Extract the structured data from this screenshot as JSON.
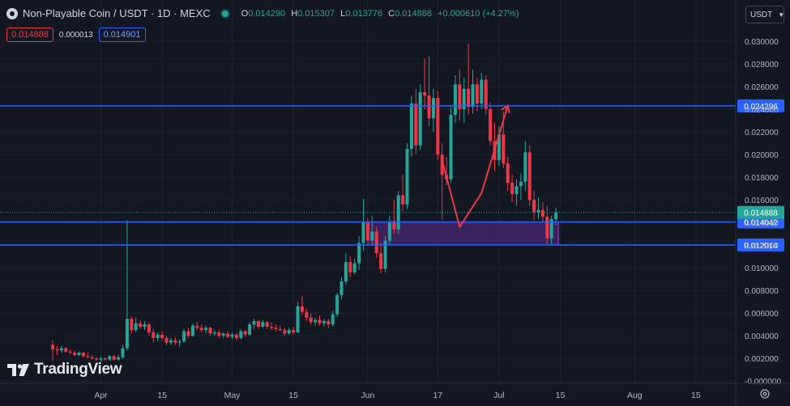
{
  "header": {
    "title": "Non-Playable Coin / USDT · 1D · MEXC",
    "ohlc": [
      {
        "k": "O",
        "v": "0.014290"
      },
      {
        "k": "H",
        "v": "0.015307"
      },
      {
        "k": "L",
        "v": "0.013776"
      },
      {
        "k": "C",
        "v": "0.014888"
      }
    ],
    "change": "+0.000610 (+4.27%)",
    "bid": "0.014888",
    "spread": "0.000013",
    "ask": "0.014901",
    "unit": "USDT",
    "logo": "TradingView",
    "icons": [
      "symbol-logo-icon",
      "live-dot-icon",
      "chevron-down-icon",
      "tradingview-logo-icon",
      "gear-icon"
    ]
  },
  "colors": {
    "background": "#131722",
    "up": "#26a69a",
    "down": "#f23645",
    "level_line": "#2962ff",
    "zone_fill": "#5b2d8c",
    "zone_border": "#9c27b0",
    "drawing": "#f23645"
  },
  "chart_data": {
    "type": "candlestick",
    "y_range": [
      -0.0002,
      0.0305
    ],
    "x_range": [
      "2024-03-20",
      "2024-08-31"
    ],
    "y_ticks": [
      "0.030000",
      "0.028000",
      "0.026000",
      "0.024000",
      "0.022000",
      "0.020000",
      "0.018000",
      "0.016000",
      "0.014000",
      "0.012000",
      "0.010000",
      "0.008000",
      "0.006000",
      "0.004000",
      "0.002000",
      "-0.000000"
    ],
    "x_ticks": [
      {
        "label": "Apr",
        "date": "2024-04-01"
      },
      {
        "label": "15",
        "date": "2024-04-15"
      },
      {
        "label": "May",
        "date": "2024-05-01"
      },
      {
        "label": "15",
        "date": "2024-05-15"
      },
      {
        "label": "Jun",
        "date": "2024-06-01"
      },
      {
        "label": "17",
        "date": "2024-06-17"
      },
      {
        "label": "Jul",
        "date": "2024-07-01"
      },
      {
        "label": "15",
        "date": "2024-07-15"
      },
      {
        "label": "Aug",
        "date": "2024-08-01"
      },
      {
        "label": "15",
        "date": "2024-08-15"
      }
    ],
    "horizontal_levels": [
      {
        "value": 0.024296,
        "label": "0.024296"
      },
      {
        "value": 0.014042,
        "label": "0.014042"
      },
      {
        "value": 0.012014,
        "label": "0.012014"
      }
    ],
    "current_price": {
      "value": 0.014888,
      "label": "0.014888"
    },
    "zone": {
      "from": "2024-06-01",
      "to": "2024-07-14",
      "low": 0.012014,
      "high": 0.014042
    },
    "drawn_path": [
      {
        "date": "2024-06-18",
        "value": 0.0195
      },
      {
        "date": "2024-06-22",
        "value": 0.0136
      },
      {
        "date": "2024-06-27",
        "value": 0.0166
      },
      {
        "date": "2024-07-03",
        "value": 0.0243
      }
    ],
    "drawn_arrow": {
      "date": "2024-07-03",
      "value": 0.0243,
      "direction": "up"
    },
    "candles": [
      {
        "date": "2024-03-21",
        "o": 0.0032,
        "h": 0.0036,
        "l": 0.0018,
        "c": 0.0028
      },
      {
        "date": "2024-03-22",
        "o": 0.0028,
        "h": 0.0031,
        "l": 0.0023,
        "c": 0.0027
      },
      {
        "date": "2024-03-23",
        "o": 0.0027,
        "h": 0.0031,
        "l": 0.0025,
        "c": 0.0029
      },
      {
        "date": "2024-03-24",
        "o": 0.0029,
        "h": 0.003,
        "l": 0.0025,
        "c": 0.0026
      },
      {
        "date": "2024-03-25",
        "o": 0.0026,
        "h": 0.0028,
        "l": 0.0024,
        "c": 0.0025
      },
      {
        "date": "2024-03-26",
        "o": 0.0025,
        "h": 0.0027,
        "l": 0.0022,
        "c": 0.0023
      },
      {
        "date": "2024-03-27",
        "o": 0.0023,
        "h": 0.0026,
        "l": 0.0022,
        "c": 0.0025
      },
      {
        "date": "2024-03-28",
        "o": 0.0025,
        "h": 0.0026,
        "l": 0.0021,
        "c": 0.0022
      },
      {
        "date": "2024-03-29",
        "o": 0.0022,
        "h": 0.0025,
        "l": 0.002,
        "c": 0.0021
      },
      {
        "date": "2024-03-30",
        "o": 0.0021,
        "h": 0.0023,
        "l": 0.0019,
        "c": 0.002
      },
      {
        "date": "2024-03-31",
        "o": 0.002,
        "h": 0.0021,
        "l": 0.0018,
        "c": 0.0019
      },
      {
        "date": "2024-04-01",
        "o": 0.0019,
        "h": 0.0022,
        "l": 0.0017,
        "c": 0.002
      },
      {
        "date": "2024-04-02",
        "o": 0.002,
        "h": 0.0021,
        "l": 0.0018,
        "c": 0.0019
      },
      {
        "date": "2024-04-03",
        "o": 0.0019,
        "h": 0.0023,
        "l": 0.0018,
        "c": 0.0022
      },
      {
        "date": "2024-04-04",
        "o": 0.0022,
        "h": 0.0023,
        "l": 0.0018,
        "c": 0.0019
      },
      {
        "date": "2024-04-05",
        "o": 0.0019,
        "h": 0.0023,
        "l": 0.0018,
        "c": 0.0021
      },
      {
        "date": "2024-04-06",
        "o": 0.0021,
        "h": 0.0032,
        "l": 0.002,
        "c": 0.0029
      },
      {
        "date": "2024-04-07",
        "o": 0.0029,
        "h": 0.0142,
        "l": 0.0027,
        "c": 0.0055
      },
      {
        "date": "2024-04-08",
        "o": 0.0055,
        "h": 0.0057,
        "l": 0.0042,
        "c": 0.0045
      },
      {
        "date": "2024-04-09",
        "o": 0.0045,
        "h": 0.0056,
        "l": 0.0043,
        "c": 0.0051
      },
      {
        "date": "2024-04-10",
        "o": 0.0051,
        "h": 0.0054,
        "l": 0.0046,
        "c": 0.0048
      },
      {
        "date": "2024-04-11",
        "o": 0.0048,
        "h": 0.0053,
        "l": 0.0045,
        "c": 0.005
      },
      {
        "date": "2024-04-12",
        "o": 0.005,
        "h": 0.0052,
        "l": 0.004,
        "c": 0.0043
      },
      {
        "date": "2024-04-13",
        "o": 0.0043,
        "h": 0.0046,
        "l": 0.0034,
        "c": 0.0038
      },
      {
        "date": "2024-04-14",
        "o": 0.0038,
        "h": 0.0043,
        "l": 0.0035,
        "c": 0.0041
      },
      {
        "date": "2024-04-15",
        "o": 0.0041,
        "h": 0.0044,
        "l": 0.0036,
        "c": 0.0038
      },
      {
        "date": "2024-04-16",
        "o": 0.0038,
        "h": 0.004,
        "l": 0.0032,
        "c": 0.0034
      },
      {
        "date": "2024-04-17",
        "o": 0.0034,
        "h": 0.0038,
        "l": 0.0032,
        "c": 0.0036
      },
      {
        "date": "2024-04-18",
        "o": 0.0036,
        "h": 0.0039,
        "l": 0.0032,
        "c": 0.0034
      },
      {
        "date": "2024-04-19",
        "o": 0.0034,
        "h": 0.0037,
        "l": 0.003,
        "c": 0.0035
      },
      {
        "date": "2024-04-20",
        "o": 0.0035,
        "h": 0.0046,
        "l": 0.0034,
        "c": 0.0044
      },
      {
        "date": "2024-04-21",
        "o": 0.0044,
        "h": 0.0047,
        "l": 0.0038,
        "c": 0.004
      },
      {
        "date": "2024-04-22",
        "o": 0.004,
        "h": 0.0051,
        "l": 0.0039,
        "c": 0.0049
      },
      {
        "date": "2024-04-23",
        "o": 0.0049,
        "h": 0.0052,
        "l": 0.0045,
        "c": 0.0047
      },
      {
        "date": "2024-04-24",
        "o": 0.0047,
        "h": 0.005,
        "l": 0.0043,
        "c": 0.0045
      },
      {
        "date": "2024-04-25",
        "o": 0.0045,
        "h": 0.0049,
        "l": 0.0042,
        "c": 0.0047
      },
      {
        "date": "2024-04-26",
        "o": 0.0047,
        "h": 0.0048,
        "l": 0.004,
        "c": 0.0042
      },
      {
        "date": "2024-04-27",
        "o": 0.0042,
        "h": 0.0045,
        "l": 0.004,
        "c": 0.0043
      },
      {
        "date": "2024-04-28",
        "o": 0.0043,
        "h": 0.0045,
        "l": 0.0038,
        "c": 0.004
      },
      {
        "date": "2024-04-29",
        "o": 0.004,
        "h": 0.0043,
        "l": 0.0038,
        "c": 0.0042
      },
      {
        "date": "2024-04-30",
        "o": 0.0042,
        "h": 0.0044,
        "l": 0.0038,
        "c": 0.0039
      },
      {
        "date": "2024-05-01",
        "o": 0.0039,
        "h": 0.0043,
        "l": 0.0037,
        "c": 0.0041
      },
      {
        "date": "2024-05-02",
        "o": 0.0041,
        "h": 0.0042,
        "l": 0.0036,
        "c": 0.0038
      },
      {
        "date": "2024-05-03",
        "o": 0.0038,
        "h": 0.0046,
        "l": 0.0037,
        "c": 0.0044
      },
      {
        "date": "2024-05-04",
        "o": 0.0044,
        "h": 0.0045,
        "l": 0.0039,
        "c": 0.0041
      },
      {
        "date": "2024-05-05",
        "o": 0.0041,
        "h": 0.0052,
        "l": 0.004,
        "c": 0.005
      },
      {
        "date": "2024-05-06",
        "o": 0.005,
        "h": 0.0055,
        "l": 0.0046,
        "c": 0.0053
      },
      {
        "date": "2024-05-07",
        "o": 0.0053,
        "h": 0.0054,
        "l": 0.0046,
        "c": 0.0048
      },
      {
        "date": "2024-05-08",
        "o": 0.0048,
        "h": 0.0054,
        "l": 0.0047,
        "c": 0.0052
      },
      {
        "date": "2024-05-09",
        "o": 0.0052,
        "h": 0.0053,
        "l": 0.0046,
        "c": 0.0048
      },
      {
        "date": "2024-05-10",
        "o": 0.0048,
        "h": 0.0052,
        "l": 0.0045,
        "c": 0.0047
      },
      {
        "date": "2024-05-11",
        "o": 0.0047,
        "h": 0.005,
        "l": 0.0044,
        "c": 0.0046
      },
      {
        "date": "2024-05-12",
        "o": 0.0046,
        "h": 0.0049,
        "l": 0.0044,
        "c": 0.0045
      },
      {
        "date": "2024-05-13",
        "o": 0.0045,
        "h": 0.0047,
        "l": 0.004,
        "c": 0.0042
      },
      {
        "date": "2024-05-14",
        "o": 0.0042,
        "h": 0.0047,
        "l": 0.0041,
        "c": 0.0045
      },
      {
        "date": "2024-05-15",
        "o": 0.0045,
        "h": 0.0048,
        "l": 0.0041,
        "c": 0.0043
      },
      {
        "date": "2024-05-16",
        "o": 0.0043,
        "h": 0.007,
        "l": 0.0042,
        "c": 0.0066
      },
      {
        "date": "2024-05-17",
        "o": 0.0066,
        "h": 0.0075,
        "l": 0.0058,
        "c": 0.0061
      },
      {
        "date": "2024-05-18",
        "o": 0.0061,
        "h": 0.0064,
        "l": 0.0053,
        "c": 0.0056
      },
      {
        "date": "2024-05-19",
        "o": 0.0056,
        "h": 0.006,
        "l": 0.005,
        "c": 0.0052
      },
      {
        "date": "2024-05-20",
        "o": 0.0052,
        "h": 0.0056,
        "l": 0.0049,
        "c": 0.0054
      },
      {
        "date": "2024-05-21",
        "o": 0.0054,
        "h": 0.0058,
        "l": 0.0049,
        "c": 0.0051
      },
      {
        "date": "2024-05-22",
        "o": 0.0051,
        "h": 0.0055,
        "l": 0.0048,
        "c": 0.0053
      },
      {
        "date": "2024-05-23",
        "o": 0.0053,
        "h": 0.0055,
        "l": 0.0047,
        "c": 0.005
      },
      {
        "date": "2024-05-24",
        "o": 0.005,
        "h": 0.0062,
        "l": 0.0048,
        "c": 0.0059
      },
      {
        "date": "2024-05-25",
        "o": 0.0059,
        "h": 0.0078,
        "l": 0.0057,
        "c": 0.0076
      },
      {
        "date": "2024-05-26",
        "o": 0.0076,
        "h": 0.0092,
        "l": 0.0072,
        "c": 0.0088
      },
      {
        "date": "2024-05-27",
        "o": 0.0088,
        "h": 0.0113,
        "l": 0.0085,
        "c": 0.0105
      },
      {
        "date": "2024-05-28",
        "o": 0.0105,
        "h": 0.011,
        "l": 0.0092,
        "c": 0.0096
      },
      {
        "date": "2024-05-29",
        "o": 0.0096,
        "h": 0.0108,
        "l": 0.0094,
        "c": 0.0104
      },
      {
        "date": "2024-05-30",
        "o": 0.0104,
        "h": 0.0128,
        "l": 0.0098,
        "c": 0.0122
      },
      {
        "date": "2024-05-31",
        "o": 0.0122,
        "h": 0.0161,
        "l": 0.0115,
        "c": 0.014
      },
      {
        "date": "2024-06-01",
        "o": 0.014,
        "h": 0.0144,
        "l": 0.0119,
        "c": 0.0124
      },
      {
        "date": "2024-06-02",
        "o": 0.0124,
        "h": 0.0146,
        "l": 0.012,
        "c": 0.0132
      },
      {
        "date": "2024-06-03",
        "o": 0.0132,
        "h": 0.0136,
        "l": 0.0109,
        "c": 0.0113
      },
      {
        "date": "2024-06-04",
        "o": 0.0113,
        "h": 0.0122,
        "l": 0.0095,
        "c": 0.0099
      },
      {
        "date": "2024-06-05",
        "o": 0.0099,
        "h": 0.0128,
        "l": 0.0096,
        "c": 0.0124
      },
      {
        "date": "2024-06-06",
        "o": 0.0124,
        "h": 0.0146,
        "l": 0.0121,
        "c": 0.0141
      },
      {
        "date": "2024-06-07",
        "o": 0.0141,
        "h": 0.016,
        "l": 0.013,
        "c": 0.0134
      },
      {
        "date": "2024-06-08",
        "o": 0.0134,
        "h": 0.0168,
        "l": 0.013,
        "c": 0.0164
      },
      {
        "date": "2024-06-09",
        "o": 0.0164,
        "h": 0.0182,
        "l": 0.015,
        "c": 0.0156
      },
      {
        "date": "2024-06-10",
        "o": 0.0156,
        "h": 0.021,
        "l": 0.0152,
        "c": 0.0205
      },
      {
        "date": "2024-06-11",
        "o": 0.0205,
        "h": 0.0252,
        "l": 0.0198,
        "c": 0.0245
      },
      {
        "date": "2024-06-12",
        "o": 0.0245,
        "h": 0.0258,
        "l": 0.02,
        "c": 0.0208
      },
      {
        "date": "2024-06-13",
        "o": 0.0208,
        "h": 0.0262,
        "l": 0.0204,
        "c": 0.0255
      },
      {
        "date": "2024-06-14",
        "o": 0.0255,
        "h": 0.0285,
        "l": 0.024,
        "c": 0.0252
      },
      {
        "date": "2024-06-15",
        "o": 0.0252,
        "h": 0.0287,
        "l": 0.0225,
        "c": 0.0232
      },
      {
        "date": "2024-06-16",
        "o": 0.0232,
        "h": 0.0258,
        "l": 0.022,
        "c": 0.025
      },
      {
        "date": "2024-06-17",
        "o": 0.025,
        "h": 0.0256,
        "l": 0.0195,
        "c": 0.02
      },
      {
        "date": "2024-06-18",
        "o": 0.02,
        "h": 0.021,
        "l": 0.0142,
        "c": 0.0182
      },
      {
        "date": "2024-06-19",
        "o": 0.0182,
        "h": 0.0198,
        "l": 0.0173,
        "c": 0.0178
      },
      {
        "date": "2024-06-20",
        "o": 0.0178,
        "h": 0.0242,
        "l": 0.0175,
        "c": 0.0235
      },
      {
        "date": "2024-06-21",
        "o": 0.0235,
        "h": 0.027,
        "l": 0.0228,
        "c": 0.0262
      },
      {
        "date": "2024-06-22",
        "o": 0.0262,
        "h": 0.0275,
        "l": 0.023,
        "c": 0.024
      },
      {
        "date": "2024-06-23",
        "o": 0.024,
        "h": 0.0268,
        "l": 0.0228,
        "c": 0.0258
      },
      {
        "date": "2024-06-24",
        "o": 0.0258,
        "h": 0.0298,
        "l": 0.0235,
        "c": 0.0242
      },
      {
        "date": "2024-06-25",
        "o": 0.0242,
        "h": 0.0275,
        "l": 0.0236,
        "c": 0.0262
      },
      {
        "date": "2024-06-26",
        "o": 0.0262,
        "h": 0.0268,
        "l": 0.0238,
        "c": 0.0245
      },
      {
        "date": "2024-06-27",
        "o": 0.0245,
        "h": 0.0272,
        "l": 0.024,
        "c": 0.0266
      },
      {
        "date": "2024-06-28",
        "o": 0.0266,
        "h": 0.027,
        "l": 0.0235,
        "c": 0.024
      },
      {
        "date": "2024-06-29",
        "o": 0.024,
        "h": 0.0246,
        "l": 0.0208,
        "c": 0.0212
      },
      {
        "date": "2024-06-30",
        "o": 0.0212,
        "h": 0.0228,
        "l": 0.0185,
        "c": 0.0195
      },
      {
        "date": "2024-07-01",
        "o": 0.0195,
        "h": 0.0225,
        "l": 0.019,
        "c": 0.0218
      },
      {
        "date": "2024-07-02",
        "o": 0.0218,
        "h": 0.0238,
        "l": 0.0188,
        "c": 0.0192
      },
      {
        "date": "2024-07-03",
        "o": 0.0192,
        "h": 0.0198,
        "l": 0.0168,
        "c": 0.0175
      },
      {
        "date": "2024-07-04",
        "o": 0.0175,
        "h": 0.0182,
        "l": 0.0158,
        "c": 0.0165
      },
      {
        "date": "2024-07-05",
        "o": 0.0165,
        "h": 0.0178,
        "l": 0.0155,
        "c": 0.0172
      },
      {
        "date": "2024-07-06",
        "o": 0.0172,
        "h": 0.0183,
        "l": 0.016,
        "c": 0.0176
      },
      {
        "date": "2024-07-07",
        "o": 0.0176,
        "h": 0.0212,
        "l": 0.0168,
        "c": 0.0202
      },
      {
        "date": "2024-07-08",
        "o": 0.0202,
        "h": 0.0208,
        "l": 0.0155,
        "c": 0.016
      },
      {
        "date": "2024-07-09",
        "o": 0.016,
        "h": 0.0168,
        "l": 0.0142,
        "c": 0.0149
      },
      {
        "date": "2024-07-10",
        "o": 0.0149,
        "h": 0.0162,
        "l": 0.0143,
        "c": 0.0151
      },
      {
        "date": "2024-07-11",
        "o": 0.0151,
        "h": 0.0158,
        "l": 0.014,
        "c": 0.0145
      },
      {
        "date": "2024-07-12",
        "o": 0.0145,
        "h": 0.0155,
        "l": 0.012,
        "c": 0.0126
      },
      {
        "date": "2024-07-13",
        "o": 0.0126,
        "h": 0.0146,
        "l": 0.012,
        "c": 0.0143
      },
      {
        "date": "2024-07-14",
        "o": 0.01429,
        "h": 0.015307,
        "l": 0.013776,
        "c": 0.014888
      }
    ]
  }
}
